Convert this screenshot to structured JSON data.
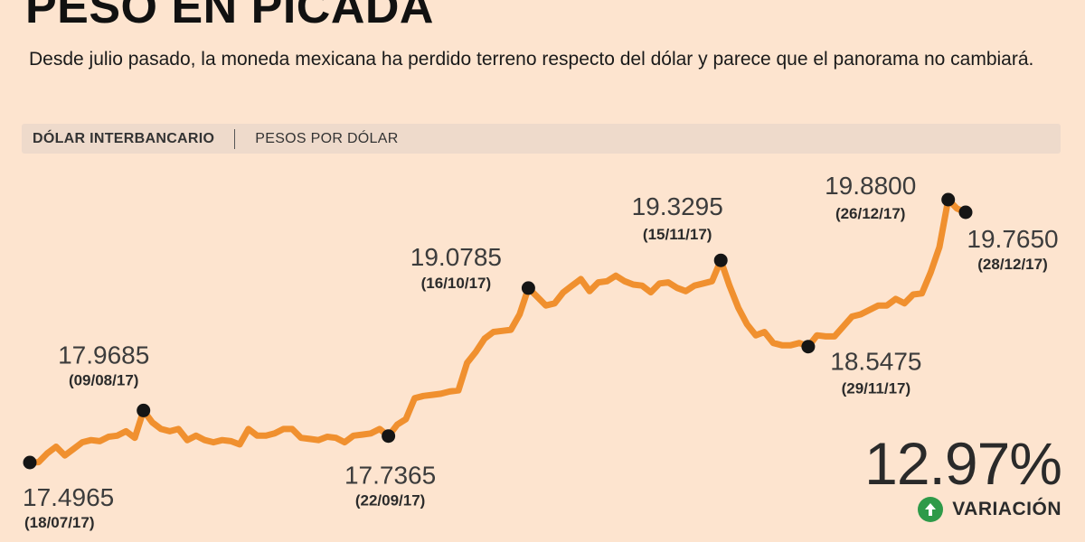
{
  "header": {
    "title": "PESO EN PICADA",
    "subtitle": "Desde julio pasado, la moneda mexicana ha perdido terreno respecto del dólar y parece que el panorama no cambiará."
  },
  "bar": {
    "primary": "DÓLAR INTERBANCARIO",
    "secondary": "PESOS POR DÓLAR"
  },
  "variation": {
    "value": "12.97%",
    "label": "VARIACIÓN",
    "direction_icon": "arrow-up-icon",
    "color": "#2e9a49"
  },
  "colors": {
    "line": "#f0902f",
    "marker": "#151515",
    "background": "#fde4cf"
  },
  "chart_data": {
    "type": "line",
    "title": "",
    "xlabel": "",
    "ylabel": "",
    "grid": false,
    "ylim": [
      17.35,
      20.0
    ],
    "series": [
      {
        "values": [
          17.4965,
          17.5,
          17.58,
          17.64,
          17.56,
          17.62,
          17.68,
          17.7,
          17.69,
          17.73,
          17.74,
          17.78,
          17.72,
          17.9685,
          17.86,
          17.8,
          17.78,
          17.8,
          17.7,
          17.74,
          17.7,
          17.68,
          17.7,
          17.69,
          17.66,
          17.8,
          17.74,
          17.74,
          17.76,
          17.8,
          17.8,
          17.72,
          17.71,
          17.7,
          17.73,
          17.72,
          17.68,
          17.74,
          17.75,
          17.76,
          17.8,
          17.7365,
          17.84,
          17.89,
          18.08,
          18.1,
          18.11,
          18.12,
          18.14,
          18.15,
          18.4,
          18.5,
          18.62,
          18.68,
          18.69,
          18.7,
          18.84,
          19.0785,
          19.0,
          18.92,
          18.94,
          19.04,
          19.1,
          19.16,
          19.05,
          19.13,
          19.14,
          19.19,
          19.14,
          19.11,
          19.1,
          19.04,
          19.12,
          19.13,
          19.08,
          19.05,
          19.1,
          19.12,
          19.14,
          19.3295,
          19.1,
          18.9,
          18.75,
          18.65,
          18.68,
          18.58,
          18.56,
          18.56,
          18.58,
          18.5475,
          18.65,
          18.64,
          18.64,
          18.73,
          18.82,
          18.84,
          18.88,
          18.92,
          18.92,
          18.98,
          18.94,
          19.02,
          19.03,
          19.22,
          19.45,
          19.88,
          19.8,
          19.765
        ]
      }
    ],
    "annotations": [
      {
        "index": 0,
        "value": "17.4965",
        "date": "(18/07/17)"
      },
      {
        "index": 13,
        "value": "17.9685",
        "date": "(09/08/17)"
      },
      {
        "index": 41,
        "value": "17.7365",
        "date": "(22/09/17)"
      },
      {
        "index": 57,
        "value": "19.0785",
        "date": "(16/10/17)"
      },
      {
        "index": 79,
        "value": "19.3295",
        "date": "(15/11/17)"
      },
      {
        "index": 89,
        "value": "18.5475",
        "date": "(29/11/17)"
      },
      {
        "index": 105,
        "value": "19.8800",
        "date": "(26/12/17)"
      },
      {
        "index": 107,
        "value": "19.7650",
        "date": "(28/12/17)"
      }
    ]
  }
}
